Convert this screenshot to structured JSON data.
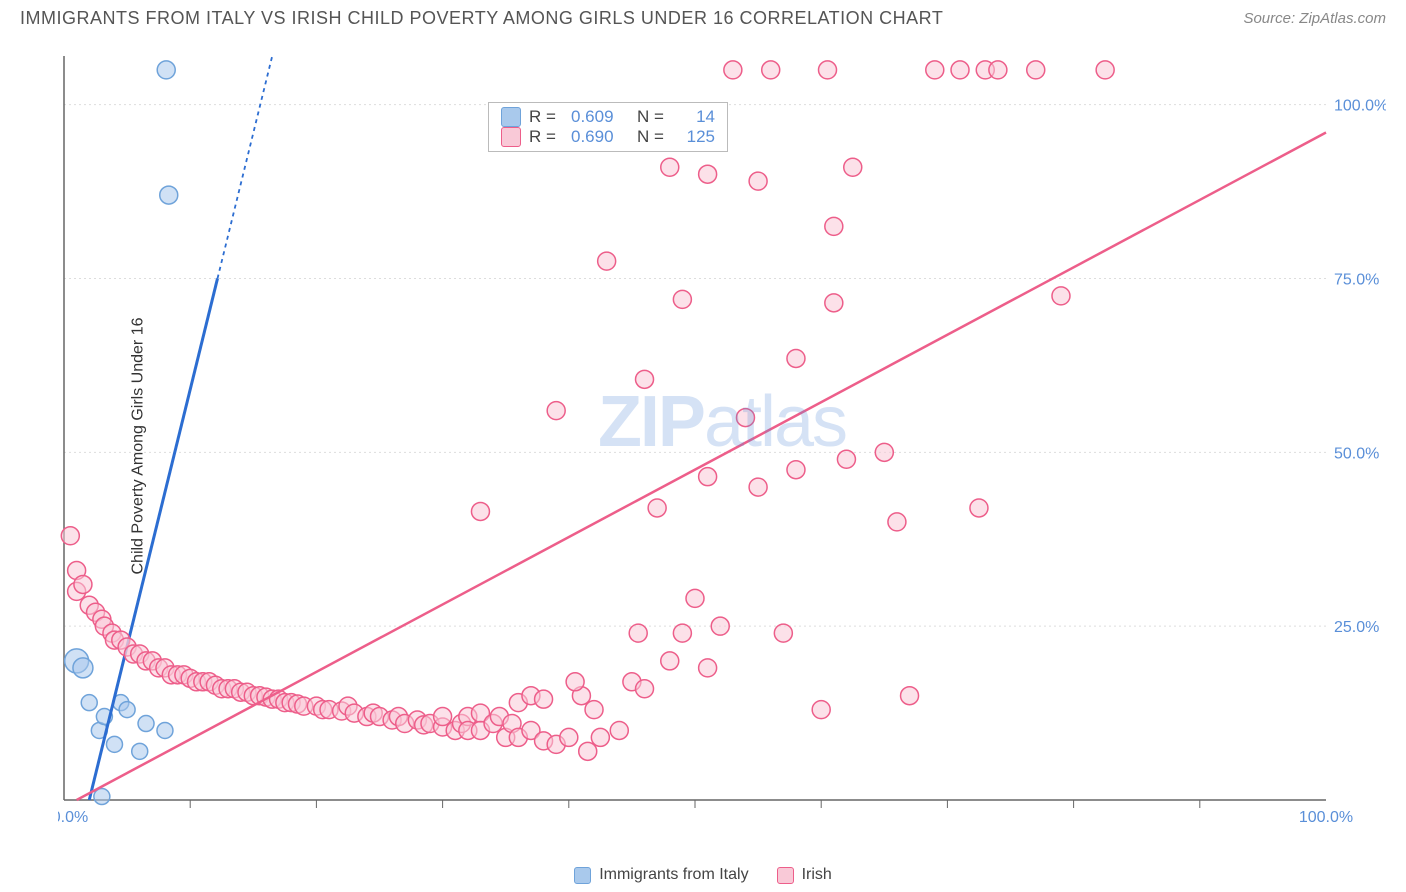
{
  "title": "IMMIGRANTS FROM ITALY VS IRISH CHILD POVERTY AMONG GIRLS UNDER 16 CORRELATION CHART",
  "source": "Source: ZipAtlas.com",
  "watermark_a": "ZIP",
  "watermark_b": "atlas",
  "y_axis_label": "Child Poverty Among Girls Under 16",
  "chart": {
    "type": "scatter",
    "xlim": [
      0,
      100
    ],
    "ylim": [
      0,
      107
    ],
    "grid_color": "#dddddd",
    "background_color": "#ffffff",
    "axis_color": "#666666",
    "tick_color": "#5a8fd8",
    "yticks": [
      25,
      50,
      75,
      100
    ],
    "ytick_labels": [
      "25.0%",
      "50.0%",
      "75.0%",
      "100.0%"
    ],
    "x_ticks_minor": [
      10,
      20,
      30,
      40,
      50,
      60,
      70,
      80,
      90
    ],
    "x_start_label": "0.0%",
    "x_end_label": "100.0%",
    "series": [
      {
        "name": "Immigrants from Italy",
        "color_fill": "#a9c9ec",
        "color_stroke": "#6fa3da",
        "marker_radius": 8,
        "line_color": "#2c6dd1",
        "line_width": 3,
        "line_dash_upper": "4,4",
        "trend": {
          "x0": 2,
          "y0": 0,
          "x1": 16.5,
          "y1": 107
        },
        "R": "0.609",
        "N": "14",
        "points": [
          {
            "x": 1,
            "y": 20,
            "r": 12
          },
          {
            "x": 1.5,
            "y": 19,
            "r": 10
          },
          {
            "x": 2,
            "y": 14,
            "r": 8
          },
          {
            "x": 2.8,
            "y": 10,
            "r": 8
          },
          {
            "x": 3.2,
            "y": 12,
            "r": 8
          },
          {
            "x": 4,
            "y": 8,
            "r": 8
          },
          {
            "x": 4.5,
            "y": 14,
            "r": 8
          },
          {
            "x": 5,
            "y": 13,
            "r": 8
          },
          {
            "x": 6,
            "y": 7,
            "r": 8
          },
          {
            "x": 6.5,
            "y": 11,
            "r": 8
          },
          {
            "x": 3,
            "y": 0.5,
            "r": 8
          },
          {
            "x": 8,
            "y": 10,
            "r": 8
          },
          {
            "x": 8.3,
            "y": 87,
            "r": 9
          },
          {
            "x": 8.1,
            "y": 105,
            "r": 9
          }
        ]
      },
      {
        "name": "Irish",
        "color_fill": "#f9c9d7",
        "color_stroke": "#ed5e8a",
        "marker_radius": 9,
        "line_color": "#ed5e8a",
        "line_width": 2.5,
        "trend": {
          "x0": 1,
          "y0": 0,
          "x1": 100,
          "y1": 96
        },
        "R": "0.690",
        "N": "125",
        "points": [
          {
            "x": 0.5,
            "y": 38
          },
          {
            "x": 1,
            "y": 33
          },
          {
            "x": 1,
            "y": 30
          },
          {
            "x": 1.5,
            "y": 31
          },
          {
            "x": 2,
            "y": 28
          },
          {
            "x": 2.5,
            "y": 27
          },
          {
            "x": 3,
            "y": 26
          },
          {
            "x": 3.2,
            "y": 25
          },
          {
            "x": 3.8,
            "y": 24
          },
          {
            "x": 4,
            "y": 23
          },
          {
            "x": 4.5,
            "y": 23
          },
          {
            "x": 5,
            "y": 22
          },
          {
            "x": 5.5,
            "y": 21
          },
          {
            "x": 6,
            "y": 21
          },
          {
            "x": 6.5,
            "y": 20
          },
          {
            "x": 7,
            "y": 20
          },
          {
            "x": 7.5,
            "y": 19
          },
          {
            "x": 8,
            "y": 19
          },
          {
            "x": 8.5,
            "y": 18
          },
          {
            "x": 9,
            "y": 18
          },
          {
            "x": 9.5,
            "y": 18
          },
          {
            "x": 10,
            "y": 17.5
          },
          {
            "x": 10.5,
            "y": 17
          },
          {
            "x": 11,
            "y": 17
          },
          {
            "x": 11.5,
            "y": 17
          },
          {
            "x": 12,
            "y": 16.5
          },
          {
            "x": 12.5,
            "y": 16
          },
          {
            "x": 13,
            "y": 16
          },
          {
            "x": 13.5,
            "y": 16
          },
          {
            "x": 14,
            "y": 15.5
          },
          {
            "x": 14.5,
            "y": 15.5
          },
          {
            "x": 15,
            "y": 15
          },
          {
            "x": 15.5,
            "y": 15
          },
          {
            "x": 16,
            "y": 14.8
          },
          {
            "x": 16.5,
            "y": 14.5
          },
          {
            "x": 17,
            "y": 14.5
          },
          {
            "x": 17.5,
            "y": 14
          },
          {
            "x": 18,
            "y": 14
          },
          {
            "x": 18.5,
            "y": 13.8
          },
          {
            "x": 19,
            "y": 13.5
          },
          {
            "x": 20,
            "y": 13.5
          },
          {
            "x": 20.5,
            "y": 13
          },
          {
            "x": 21,
            "y": 13
          },
          {
            "x": 22,
            "y": 12.8
          },
          {
            "x": 22.5,
            "y": 13.5
          },
          {
            "x": 23,
            "y": 12.5
          },
          {
            "x": 24,
            "y": 12
          },
          {
            "x": 24.5,
            "y": 12.5
          },
          {
            "x": 25,
            "y": 12
          },
          {
            "x": 26,
            "y": 11.5
          },
          {
            "x": 26.5,
            "y": 12
          },
          {
            "x": 27,
            "y": 11
          },
          {
            "x": 28,
            "y": 11.5
          },
          {
            "x": 28.5,
            "y": 10.8
          },
          {
            "x": 29,
            "y": 11
          },
          {
            "x": 30,
            "y": 10.5
          },
          {
            "x": 30,
            "y": 12
          },
          {
            "x": 31,
            "y": 10
          },
          {
            "x": 31.5,
            "y": 11
          },
          {
            "x": 32,
            "y": 12
          },
          {
            "x": 32,
            "y": 10
          },
          {
            "x": 33,
            "y": 12.5
          },
          {
            "x": 33,
            "y": 10
          },
          {
            "x": 34,
            "y": 11
          },
          {
            "x": 34.5,
            "y": 12
          },
          {
            "x": 35,
            "y": 9
          },
          {
            "x": 35.5,
            "y": 11
          },
          {
            "x": 36,
            "y": 14
          },
          {
            "x": 36,
            "y": 9
          },
          {
            "x": 37,
            "y": 15
          },
          {
            "x": 37,
            "y": 10
          },
          {
            "x": 38,
            "y": 14.5
          },
          {
            "x": 38,
            "y": 8.5
          },
          {
            "x": 39,
            "y": 8
          },
          {
            "x": 40,
            "y": 9
          },
          {
            "x": 41,
            "y": 15
          },
          {
            "x": 41.5,
            "y": 7
          },
          {
            "x": 42,
            "y": 13
          },
          {
            "x": 42.5,
            "y": 9
          },
          {
            "x": 44,
            "y": 10
          },
          {
            "x": 33,
            "y": 41.5
          },
          {
            "x": 39,
            "y": 56
          },
          {
            "x": 40.5,
            "y": 17
          },
          {
            "x": 43,
            "y": 77.5
          },
          {
            "x": 45,
            "y": 17
          },
          {
            "x": 45.5,
            "y": 24
          },
          {
            "x": 46,
            "y": 16
          },
          {
            "x": 46,
            "y": 60.5
          },
          {
            "x": 47,
            "y": 42
          },
          {
            "x": 48,
            "y": 20
          },
          {
            "x": 48,
            "y": 91
          },
          {
            "x": 49,
            "y": 24
          },
          {
            "x": 49,
            "y": 72
          },
          {
            "x": 50,
            "y": 29
          },
          {
            "x": 51,
            "y": 19
          },
          {
            "x": 51,
            "y": 90
          },
          {
            "x": 51,
            "y": 46.5
          },
          {
            "x": 52,
            "y": 25
          },
          {
            "x": 53,
            "y": 105
          },
          {
            "x": 54,
            "y": 55
          },
          {
            "x": 55,
            "y": 45
          },
          {
            "x": 55,
            "y": 89
          },
          {
            "x": 56,
            "y": 105
          },
          {
            "x": 57,
            "y": 24
          },
          {
            "x": 58,
            "y": 63.5
          },
          {
            "x": 58,
            "y": 47.5
          },
          {
            "x": 60.5,
            "y": 105
          },
          {
            "x": 61,
            "y": 82.5
          },
          {
            "x": 61,
            "y": 71.5
          },
          {
            "x": 62.5,
            "y": 91
          },
          {
            "x": 60,
            "y": 13
          },
          {
            "x": 62,
            "y": 49
          },
          {
            "x": 65,
            "y": 50
          },
          {
            "x": 66,
            "y": 40
          },
          {
            "x": 67,
            "y": 15
          },
          {
            "x": 69,
            "y": 105
          },
          {
            "x": 71,
            "y": 105
          },
          {
            "x": 72.5,
            "y": 42
          },
          {
            "x": 73,
            "y": 105
          },
          {
            "x": 74,
            "y": 105
          },
          {
            "x": 77,
            "y": 105
          },
          {
            "x": 79,
            "y": 72.5
          },
          {
            "x": 82.5,
            "y": 105
          }
        ]
      }
    ]
  }
}
